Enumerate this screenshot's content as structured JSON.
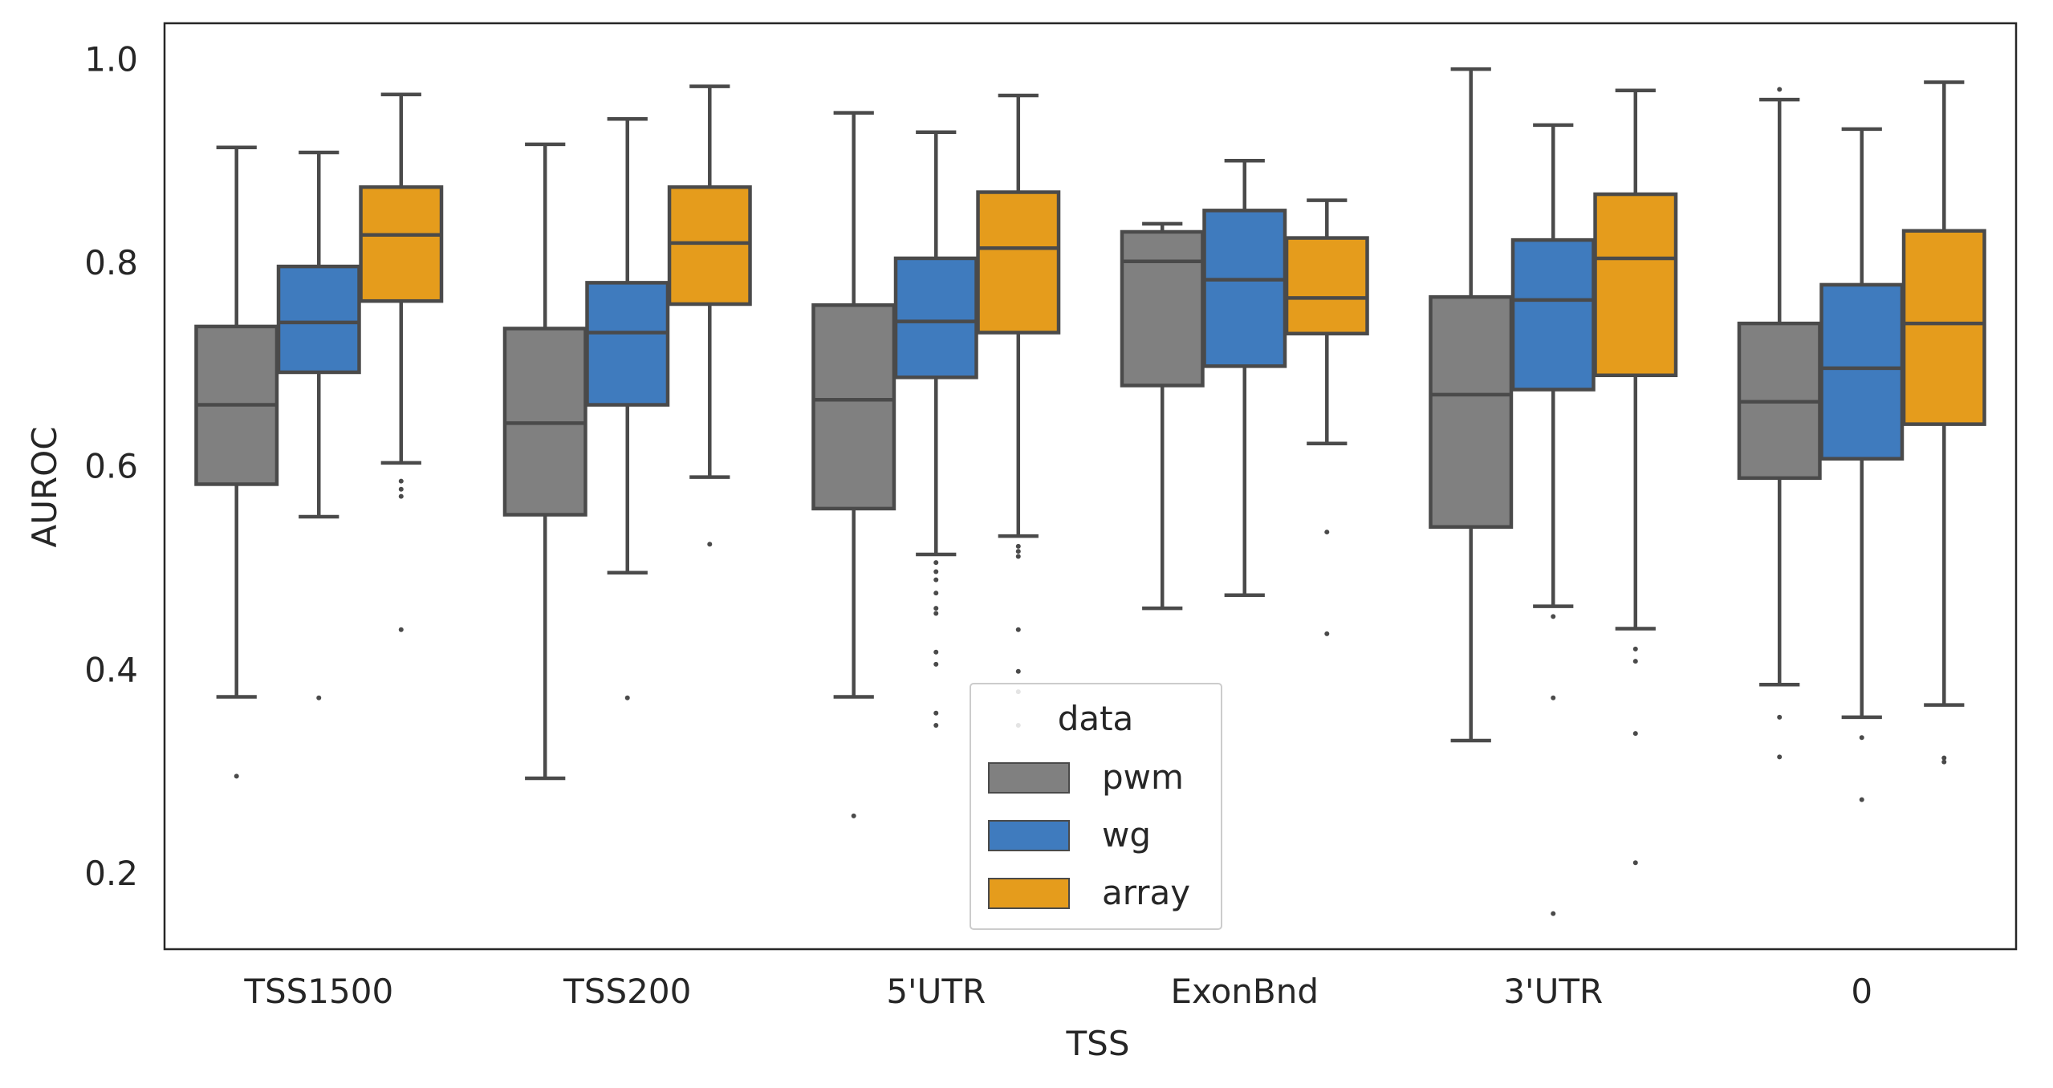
{
  "chart_data": {
    "type": "box",
    "xlabel": "TSS",
    "ylabel": "AUROC",
    "ylim": [
      0.125,
      1.035
    ],
    "yticks": [
      "0.2",
      "0.4",
      "0.6",
      "0.8",
      "1.0"
    ],
    "grid": false,
    "categories": [
      "TSS1500",
      "TSS200",
      "5'UTR",
      "ExonBnd",
      "3'UTR",
      "0"
    ],
    "legend": {
      "title": "data",
      "placement": "lower-center",
      "entries": [
        "pwm",
        "wg",
        "array"
      ]
    },
    "series": [
      {
        "name": "pwm",
        "color": "#808080",
        "boxes": [
          {
            "whislo": 0.373,
            "q1": 0.582,
            "med": 0.66,
            "q3": 0.737,
            "whishi": 0.913,
            "fliers": [
              0.295
            ]
          },
          {
            "whislo": 0.293,
            "q1": 0.552,
            "med": 0.642,
            "q3": 0.735,
            "whishi": 0.916,
            "fliers": []
          },
          {
            "whislo": 0.373,
            "q1": 0.558,
            "med": 0.665,
            "q3": 0.758,
            "whishi": 0.947,
            "fliers": [
              0.256
            ]
          },
          {
            "whislo": 0.46,
            "q1": 0.679,
            "med": 0.801,
            "q3": 0.83,
            "whishi": 0.838,
            "fliers": []
          },
          {
            "whislo": 0.33,
            "q1": 0.54,
            "med": 0.67,
            "q3": 0.766,
            "whishi": 0.99,
            "fliers": []
          },
          {
            "whislo": 0.385,
            "q1": 0.588,
            "med": 0.663,
            "q3": 0.74,
            "whishi": 0.96,
            "fliers": [
              0.353,
              0.314,
              0.97
            ]
          }
        ]
      },
      {
        "name": "wg",
        "color": "#3f7bbe",
        "boxes": [
          {
            "whislo": 0.55,
            "q1": 0.692,
            "med": 0.741,
            "q3": 0.796,
            "whishi": 0.908,
            "fliers": [
              0.372
            ]
          },
          {
            "whislo": 0.495,
            "q1": 0.66,
            "med": 0.731,
            "q3": 0.78,
            "whishi": 0.941,
            "fliers": [
              0.372
            ]
          },
          {
            "whislo": 0.513,
            "q1": 0.687,
            "med": 0.742,
            "q3": 0.804,
            "whishi": 0.928,
            "fliers": [
              0.505,
              0.496,
              0.488,
              0.475,
              0.46,
              0.455,
              0.417,
              0.405,
              0.357,
              0.345
            ]
          },
          {
            "whislo": 0.473,
            "q1": 0.698,
            "med": 0.783,
            "q3": 0.851,
            "whishi": 0.9,
            "fliers": []
          },
          {
            "whislo": 0.462,
            "q1": 0.675,
            "med": 0.763,
            "q3": 0.822,
            "whishi": 0.935,
            "fliers": [
              0.452,
              0.372,
              0.16
            ]
          },
          {
            "whislo": 0.353,
            "q1": 0.607,
            "med": 0.696,
            "q3": 0.778,
            "whishi": 0.931,
            "fliers": [
              0.333,
              0.272
            ]
          }
        ]
      },
      {
        "name": "array",
        "color": "#e59c1c",
        "boxes": [
          {
            "whislo": 0.603,
            "q1": 0.762,
            "med": 0.827,
            "q3": 0.874,
            "whishi": 0.965,
            "fliers": [
              0.585,
              0.577,
              0.57,
              0.439
            ]
          },
          {
            "whislo": 0.589,
            "q1": 0.759,
            "med": 0.819,
            "q3": 0.874,
            "whishi": 0.973,
            "fliers": [
              0.523
            ]
          },
          {
            "whislo": 0.531,
            "q1": 0.731,
            "med": 0.814,
            "q3": 0.869,
            "whishi": 0.964,
            "fliers": [
              0.521,
              0.516,
              0.511,
              0.439,
              0.398,
              0.378,
              0.345
            ]
          },
          {
            "whislo": 0.622,
            "q1": 0.73,
            "med": 0.765,
            "q3": 0.824,
            "whishi": 0.861,
            "fliers": [
              0.535,
              0.435
            ]
          },
          {
            "whislo": 0.44,
            "q1": 0.689,
            "med": 0.804,
            "q3": 0.867,
            "whishi": 0.969,
            "fliers": [
              0.42,
              0.408,
              0.337,
              0.21
            ]
          },
          {
            "whislo": 0.365,
            "q1": 0.641,
            "med": 0.74,
            "q3": 0.831,
            "whishi": 0.977,
            "fliers": [
              0.313,
              0.309
            ]
          }
        ]
      }
    ]
  }
}
